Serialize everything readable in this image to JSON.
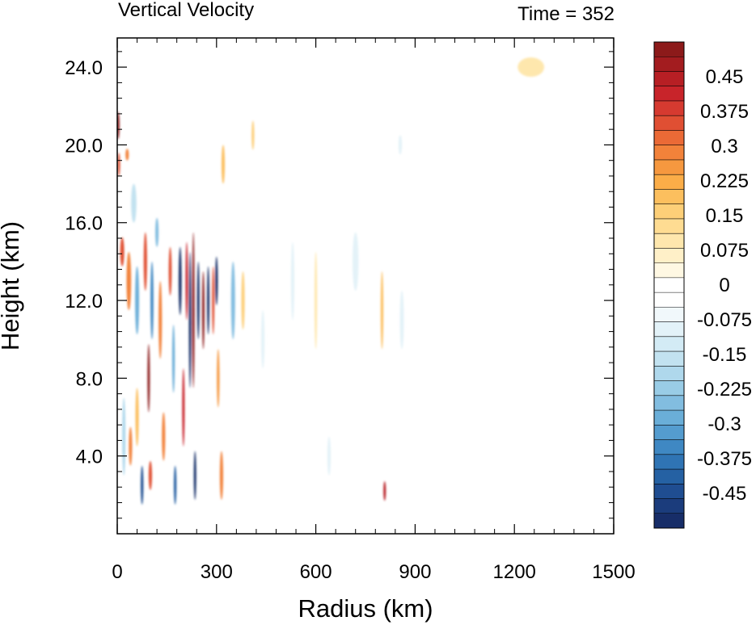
{
  "chart_data": {
    "type": "heatmap",
    "title_left": "Vertical Velocity",
    "title_right": "Time = 352",
    "xlabel": "Radius (km)",
    "ylabel": "Height (km)",
    "xlim": [
      0,
      1500
    ],
    "ylim": [
      0,
      25.5
    ],
    "x_ticks": [
      0,
      300,
      600,
      900,
      1200,
      1500
    ],
    "x_tick_labels": [
      "0",
      "300",
      "600",
      "900",
      "1200",
      "1500"
    ],
    "y_ticks": [
      4,
      8,
      12,
      16,
      20,
      24
    ],
    "y_tick_labels": [
      "4.0",
      "8.0",
      "12.0",
      "16.0",
      "20.0",
      "24.0"
    ],
    "colorbar": {
      "min": -0.525,
      "max": 0.525,
      "step": 0.025,
      "label_values": [
        0.45,
        0.375,
        0.3,
        0.225,
        0.15,
        0.075,
        0,
        -0.075,
        -0.15,
        -0.225,
        -0.3,
        -0.375,
        -0.45
      ],
      "labels": [
        "0.45",
        "0.375",
        "0.3",
        "0.225",
        "0.15",
        "0.075",
        "0",
        "-0.075",
        "-0.15",
        "-0.225",
        "-0.3",
        "-0.375",
        "-0.45"
      ],
      "colors_high_to_low": [
        "#8c1a1a",
        "#a31c1f",
        "#b71f24",
        "#c8242a",
        "#d63a30",
        "#e04f33",
        "#eb6a36",
        "#f2823a",
        "#f6983f",
        "#fbad48",
        "#fcbf5e",
        "#fdcf78",
        "#fedc92",
        "#fee7ad",
        "#fff0c8",
        "#fff8e3",
        "#ffffff",
        "#ffffff",
        "#f1f8fb",
        "#e3f2f8",
        "#d3ebf5",
        "#c2e2f0",
        "#afd8ec",
        "#99cce6",
        "#82bde0",
        "#6aaed8",
        "#549ccf",
        "#3f88c3",
        "#2f74b4",
        "#2561a3",
        "#1f4d91",
        "#1b3c7c",
        "#172d68"
      ]
    },
    "features": [
      {
        "r": 3,
        "z": 21.0,
        "w": 8,
        "h": 1.4,
        "v": 0.5
      },
      {
        "r": 5,
        "z": 19.0,
        "w": 6,
        "h": 1.2,
        "v": 0.35
      },
      {
        "r": 30,
        "z": 19.5,
        "w": 10,
        "h": 0.6,
        "v": 0.3
      },
      {
        "r": 15,
        "z": 14.5,
        "w": 12,
        "h": 1.5,
        "v": 0.35
      },
      {
        "r": 20,
        "z": 5.0,
        "w": 10,
        "h": 4.0,
        "v": -0.2
      },
      {
        "r": 35,
        "z": 13.0,
        "w": 14,
        "h": 3.0,
        "v": 0.3
      },
      {
        "r": 40,
        "z": 4.5,
        "w": 10,
        "h": 2.0,
        "v": 0.3
      },
      {
        "r": 50,
        "z": 17.0,
        "w": 16,
        "h": 2.0,
        "v": -0.15
      },
      {
        "r": 60,
        "z": 12.0,
        "w": 12,
        "h": 3.5,
        "v": -0.3
      },
      {
        "r": 60,
        "z": 6.0,
        "w": 10,
        "h": 3.0,
        "v": 0.2
      },
      {
        "r": 75,
        "z": 2.5,
        "w": 8,
        "h": 2.0,
        "v": -0.45
      },
      {
        "r": 85,
        "z": 14.0,
        "w": 10,
        "h": 3.0,
        "v": 0.35
      },
      {
        "r": 95,
        "z": 8.0,
        "w": 7,
        "h": 3.5,
        "v": 0.5
      },
      {
        "r": 105,
        "z": 12.0,
        "w": 9,
        "h": 4.0,
        "v": -0.35
      },
      {
        "r": 100,
        "z": 3.0,
        "w": 10,
        "h": 1.5,
        "v": 0.35
      },
      {
        "r": 120,
        "z": 15.5,
        "w": 10,
        "h": 1.5,
        "v": -0.25
      },
      {
        "r": 130,
        "z": 11.0,
        "w": 10,
        "h": 4.0,
        "v": 0.3
      },
      {
        "r": 140,
        "z": 5.0,
        "w": 10,
        "h": 2.5,
        "v": 0.3
      },
      {
        "r": 160,
        "z": 13.5,
        "w": 9,
        "h": 2.5,
        "v": 0.35
      },
      {
        "r": 170,
        "z": 9.0,
        "w": 8,
        "h": 3.5,
        "v": -0.3
      },
      {
        "r": 175,
        "z": 2.5,
        "w": 8,
        "h": 2.0,
        "v": -0.4
      },
      {
        "r": 190,
        "z": 13.0,
        "w": 9,
        "h": 3.5,
        "v": -0.5
      },
      {
        "r": 200,
        "z": 6.5,
        "w": 7,
        "h": 4.0,
        "v": 0.4
      },
      {
        "r": 210,
        "z": 13.0,
        "w": 7,
        "h": 4.0,
        "v": 0.4
      },
      {
        "r": 220,
        "z": 11.0,
        "w": 6,
        "h": 7.0,
        "v": -0.5
      },
      {
        "r": 230,
        "z": 11.5,
        "w": 7,
        "h": 8.0,
        "v": 0.6
      },
      {
        "r": 235,
        "z": 3.0,
        "w": 6,
        "h": 2.5,
        "v": -0.55
      },
      {
        "r": 245,
        "z": 12.0,
        "w": 6,
        "h": 4.0,
        "v": -0.55
      },
      {
        "r": 260,
        "z": 11.5,
        "w": 7,
        "h": 4.0,
        "v": 0.5
      },
      {
        "r": 275,
        "z": 12.0,
        "w": 7,
        "h": 3.5,
        "v": -0.5
      },
      {
        "r": 290,
        "z": 12.0,
        "w": 7,
        "h": 3.5,
        "v": 0.35
      },
      {
        "r": 300,
        "z": 13.0,
        "w": 8,
        "h": 2.5,
        "v": -0.5
      },
      {
        "r": 305,
        "z": 8.0,
        "w": 8,
        "h": 3.0,
        "v": 0.25
      },
      {
        "r": 315,
        "z": 3.0,
        "w": 10,
        "h": 2.5,
        "v": 0.3
      },
      {
        "r": 320,
        "z": 19.0,
        "w": 10,
        "h": 2.0,
        "v": 0.2
      },
      {
        "r": 350,
        "z": 12.0,
        "w": 12,
        "h": 4.0,
        "v": -0.25
      },
      {
        "r": 380,
        "z": 12.0,
        "w": 10,
        "h": 3.0,
        "v": 0.15
      },
      {
        "r": 410,
        "z": 20.5,
        "w": 8,
        "h": 1.5,
        "v": 0.15
      },
      {
        "r": 440,
        "z": 10.0,
        "w": 10,
        "h": 3.0,
        "v": -0.1
      },
      {
        "r": 530,
        "z": 13.0,
        "w": 10,
        "h": 4.0,
        "v": -0.08
      },
      {
        "r": 600,
        "z": 12.0,
        "w": 8,
        "h": 5.0,
        "v": 0.1
      },
      {
        "r": 640,
        "z": 4.0,
        "w": 10,
        "h": 2.0,
        "v": -0.08
      },
      {
        "r": 720,
        "z": 14.0,
        "w": 18,
        "h": 3.0,
        "v": -0.1
      },
      {
        "r": 800,
        "z": 11.5,
        "w": 8,
        "h": 4.0,
        "v": 0.18
      },
      {
        "r": 808,
        "z": 2.2,
        "w": 4,
        "h": 1.0,
        "v": 0.45
      },
      {
        "r": 860,
        "z": 11.0,
        "w": 12,
        "h": 3.0,
        "v": -0.08
      },
      {
        "r": 855,
        "z": 20.0,
        "w": 10,
        "h": 1.0,
        "v": -0.08
      },
      {
        "r": 1250,
        "z": 24.0,
        "w": 80,
        "h": 1.0,
        "v": 0.08
      }
    ]
  }
}
